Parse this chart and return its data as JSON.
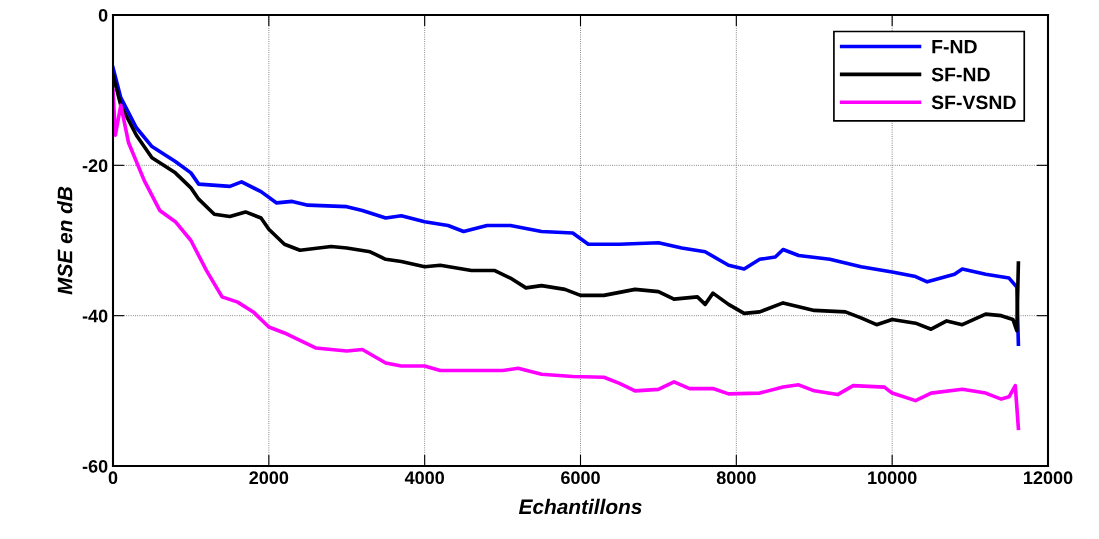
{
  "chart_data": {
    "type": "line",
    "xlabel": "Echantillons",
    "ylabel": "MSE en dB",
    "xlim": [
      0,
      12000
    ],
    "ylim": [
      -60,
      0
    ],
    "xticks": [
      0,
      2000,
      4000,
      6000,
      8000,
      10000,
      12000
    ],
    "yticks": [
      -60,
      -40,
      -20,
      0
    ],
    "grid": true,
    "legend": "top right",
    "line_style": "solid",
    "marker": "none",
    "series": [
      {
        "name": "F-ND",
        "color": "#0000ff",
        "x": [
          0,
          100,
          300,
          500,
          800,
          1000,
          1100,
          1500,
          1650,
          1900,
          2100,
          2300,
          2500,
          3000,
          3200,
          3500,
          3700,
          4000,
          4300,
          4500,
          4800,
          5100,
          5500,
          5900,
          6100,
          6500,
          7000,
          7300,
          7600,
          7900,
          8100,
          8300,
          8500,
          8600,
          8800,
          9200,
          9600,
          10000,
          10300,
          10450,
          10800,
          10900,
          11200,
          11500,
          11600,
          11620
        ],
        "values": [
          -7,
          -11,
          -15,
          -17.5,
          -19.5,
          -21,
          -22.5,
          -22.8,
          -22.2,
          -23.5,
          -25,
          -24.8,
          -25.3,
          -25.5,
          -26,
          -27,
          -26.7,
          -27.5,
          -28,
          -28.8,
          -28,
          -28,
          -28.8,
          -29,
          -30.5,
          -30.5,
          -30.3,
          -31,
          -31.5,
          -33.3,
          -33.8,
          -32.5,
          -32.2,
          -31.2,
          -32,
          -32.5,
          -33.5,
          -34.2,
          -34.8,
          -35.5,
          -34.5,
          -33.8,
          -34.5,
          -35,
          -36.2,
          -43.8
        ]
      },
      {
        "name": "SF-ND",
        "color": "#000000",
        "x": [
          0,
          100,
          300,
          500,
          800,
          1000,
          1100,
          1300,
          1500,
          1700,
          1900,
          2000,
          2200,
          2400,
          2800,
          3000,
          3300,
          3500,
          3700,
          4000,
          4200,
          4600,
          4900,
          5100,
          5300,
          5500,
          5800,
          6000,
          6300,
          6700,
          7000,
          7200,
          7500,
          7600,
          7700,
          7900,
          8100,
          8300,
          8600,
          8800,
          9000,
          9400,
          9600,
          9800,
          10000,
          10300,
          10500,
          10700,
          10900,
          11200,
          11400,
          11550,
          11600,
          11620
        ],
        "values": [
          -8,
          -12,
          -16,
          -19,
          -21,
          -23,
          -24.5,
          -26.5,
          -26.8,
          -26.2,
          -27,
          -28.5,
          -30.5,
          -31.3,
          -30.8,
          -31,
          -31.5,
          -32.5,
          -32.8,
          -33.5,
          -33.3,
          -34,
          -34,
          -35,
          -36.3,
          -36,
          -36.5,
          -37.3,
          -37.3,
          -36.5,
          -36.8,
          -37.8,
          -37.5,
          -38.5,
          -37,
          -38.5,
          -39.7,
          -39.5,
          -38.3,
          -38.8,
          -39.3,
          -39.5,
          -40.3,
          -41.2,
          -40.5,
          -41,
          -41.8,
          -40.7,
          -41.2,
          -39.8,
          -40,
          -40.5,
          -42,
          -33
        ]
      },
      {
        "name": "SF-VSND",
        "color": "#ff00ff",
        "x": [
          0,
          30,
          100,
          200,
          400,
          600,
          800,
          1000,
          1200,
          1400,
          1600,
          1800,
          2000,
          2200,
          2600,
          3000,
          3200,
          3500,
          3700,
          4000,
          4200,
          4600,
          5000,
          5200,
          5500,
          5900,
          6300,
          6500,
          6700,
          7000,
          7200,
          7400,
          7700,
          7900,
          8300,
          8600,
          8800,
          9000,
          9300,
          9500,
          9900,
          10000,
          10300,
          10500,
          10900,
          11200,
          11400,
          11500,
          11580,
          11620
        ],
        "values": [
          -10,
          -16,
          -12,
          -17,
          -22,
          -26,
          -27.5,
          -30,
          -34,
          -37.5,
          -38.2,
          -39.5,
          -41.5,
          -42.3,
          -44.3,
          -44.7,
          -44.5,
          -46.3,
          -46.7,
          -46.7,
          -47.3,
          -47.3,
          -47.3,
          -47,
          -47.8,
          -48.1,
          -48.2,
          -49,
          -50,
          -49.8,
          -48.8,
          -49.7,
          -49.7,
          -50.4,
          -50.3,
          -49.5,
          -49.2,
          -50,
          -50.5,
          -49.3,
          -49.5,
          -50.3,
          -51.3,
          -50.3,
          -49.8,
          -50.3,
          -51.1,
          -50.8,
          -49.3,
          -55
        ]
      }
    ]
  }
}
